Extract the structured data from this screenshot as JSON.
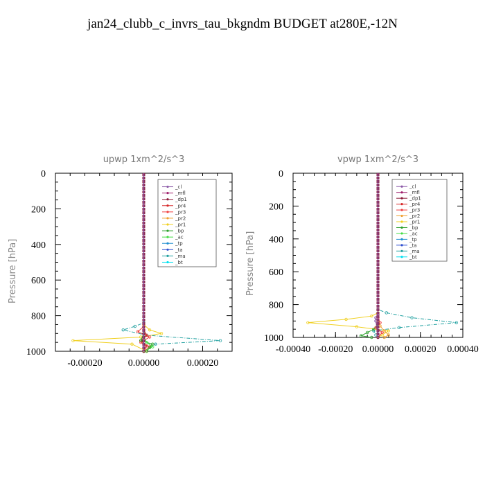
{
  "title": "jan24_clubb_c_invrs_tau_bkgndm  BUDGET at280E,-12N",
  "colors": {
    "_cl": "#8c5aa8",
    "_mfl": "#a0206e",
    "_dp1": "#8b1a3a",
    "_pr4": "#d62728",
    "_pr3": "#f04040",
    "_pr2": "#f0a030",
    "_pr1": "#f0d020",
    "_bp": "#2ca02c",
    "_ac": "#44dd44",
    "_tp": "#1f8fd0",
    "_ta": "#3050d0",
    "_ma": "#20a0a0",
    "_bt": "#00e0f0"
  },
  "chart_data": [
    {
      "type": "line",
      "title": "upwp   1xm^2/s^3",
      "ylabel": "Pressure [hPa]",
      "xlabel": "",
      "xlim": [
        -0.0003,
        0.0003
      ],
      "ylim": [
        1000,
        0
      ],
      "yticks": [
        0,
        200,
        400,
        600,
        800,
        1000
      ],
      "ytick_labels": [
        "0",
        "200",
        "400",
        "600",
        "800",
        "1000"
      ],
      "xticks": [
        -0.0002,
        0,
        0.0002
      ],
      "xtick_labels": [
        "-0.00020",
        "0.00000",
        "0.00020"
      ],
      "legend": [
        "_cl",
        "_mfl",
        "_dp1",
        "_pr4",
        "_pr3",
        "_pr2",
        "_pr1",
        "_bp",
        "_ac",
        "_tp",
        "_ta",
        "_ma",
        "_bt"
      ],
      "legend_position": "top-right",
      "series": [
        {
          "name": "_pr1",
          "x": [
            0,
            0,
            2e-05,
            6e-05,
            -1e-05,
            -0.00024,
            -4e-05,
            1e-05
          ],
          "y": [
            0,
            850,
            880,
            900,
            920,
            940,
            960,
            1000
          ]
        },
        {
          "name": "_ma",
          "x": [
            0,
            0,
            -3e-05,
            -7e-05,
            1e-05,
            0.00026,
            4e-05,
            0
          ],
          "y": [
            0,
            840,
            860,
            880,
            910,
            940,
            960,
            1000
          ]
        },
        {
          "name": "_pr3",
          "x": [
            0,
            0,
            -2e-05,
            2e-05,
            -1e-05,
            2e-05,
            0
          ],
          "y": [
            0,
            860,
            890,
            920,
            950,
            975,
            1000
          ]
        },
        {
          "name": "_pr4",
          "x": [
            0,
            0,
            1e-05,
            -1e-05,
            1e-05,
            0
          ],
          "y": [
            0,
            880,
            910,
            940,
            970,
            1000
          ]
        },
        {
          "name": "_bp",
          "x": [
            0,
            0,
            -1e-05,
            3e-05,
            2e-05,
            1e-05
          ],
          "y": [
            0,
            900,
            940,
            960,
            980,
            1000
          ]
        },
        {
          "name": "_ac",
          "x": [
            0,
            0,
            1e-05,
            3e-05,
            0
          ],
          "y": [
            0,
            920,
            950,
            975,
            1000
          ]
        },
        {
          "name": "_dp1",
          "x": [
            0,
            0,
            0
          ],
          "y": [
            0,
            500,
            1000
          ]
        }
      ]
    },
    {
      "type": "line",
      "title": "vpwp   1xm^2/s^3",
      "ylabel": "Pressure [hPa]",
      "xlabel": "",
      "xlim": [
        -0.0004,
        0.0004
      ],
      "ylim": [
        1000,
        0
      ],
      "yticks": [
        0,
        200,
        400,
        600,
        800,
        1000
      ],
      "ytick_labels": [
        "0",
        "200",
        "400",
        "600",
        "800",
        "1000"
      ],
      "xticks": [
        -0.0004,
        -0.0002,
        0,
        0.0002,
        0.0004
      ],
      "xtick_labels": [
        "-0.00040",
        "-0.00020",
        "0.00000",
        "0.00020",
        "0.00040"
      ],
      "legend": [
        "_cl",
        "_mfl",
        "_dp1",
        "_pr4",
        "_pr3",
        "_pr2",
        "_pr1",
        "_bp",
        "_ac",
        "_tp",
        "_ta",
        "_ma",
        "_bt"
      ],
      "legend_position": "top-right",
      "series": [
        {
          "name": "_pr1",
          "x": [
            0,
            0,
            -3e-05,
            -0.00015,
            -0.00033,
            -0.0001,
            5e-05,
            2e-05,
            0
          ],
          "y": [
            0,
            850,
            870,
            890,
            910,
            935,
            960,
            985,
            1000
          ]
        },
        {
          "name": "_ma",
          "x": [
            0,
            0,
            4e-05,
            0.00016,
            0.00037,
            0.0001,
            -2e-05,
            -1e-05,
            0
          ],
          "y": [
            0,
            830,
            850,
            880,
            910,
            940,
            960,
            985,
            1000
          ]
        },
        {
          "name": "_bp",
          "x": [
            0,
            0,
            -2e-05,
            -5e-05,
            -8e-05,
            -3e-05
          ],
          "y": [
            0,
            920,
            950,
            970,
            990,
            1000
          ]
        },
        {
          "name": "_pr3",
          "x": [
            0,
            0,
            1e-05,
            -1e-05,
            2e-05,
            0
          ],
          "y": [
            0,
            880,
            910,
            940,
            970,
            1000
          ]
        },
        {
          "name": "_pr2",
          "x": [
            0,
            0,
            1e-05,
            3e-05,
            5e-05,
            3e-05
          ],
          "y": [
            0,
            900,
            930,
            960,
            985,
            1000
          ]
        },
        {
          "name": "_cl",
          "x": [
            0,
            0,
            -1e-05,
            -1e-05,
            0
          ],
          "y": [
            0,
            860,
            880,
            900,
            1000
          ]
        },
        {
          "name": "_dp1",
          "x": [
            0,
            0,
            0
          ],
          "y": [
            0,
            500,
            1000
          ]
        }
      ]
    }
  ]
}
